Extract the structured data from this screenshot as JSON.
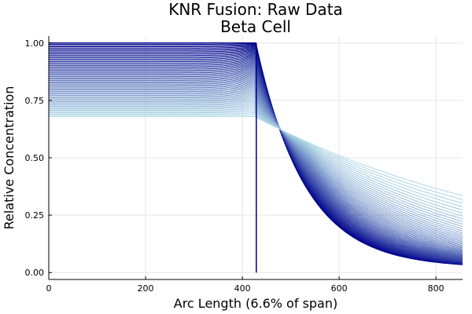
{
  "chart_data": {
    "type": "line",
    "title": "KNR Fusion: Raw Data",
    "subtitle": "Beta Cell",
    "xlabel": "Arc Length (6.6% of span)",
    "ylabel": "Relative Concentration",
    "xlim": [
      0,
      855
    ],
    "ylim": [
      -0.03,
      1.03
    ],
    "xticks": [
      0,
      200,
      400,
      600,
      800
    ],
    "yticks": [
      0.0,
      0.25,
      0.5,
      0.75,
      1.0
    ],
    "xtick_labels": [
      "0",
      "200",
      "400",
      "600",
      "800"
    ],
    "ytick_labels": [
      "0.00",
      "0.25",
      "0.50",
      "0.75",
      "1.00"
    ],
    "grid": true,
    "legend": "none",
    "boundary_x": 428,
    "series_count": 60,
    "plateau": {
      "x_start": 0,
      "x_end": 428,
      "level_min": 0.68,
      "level_max": 1.0
    },
    "decay": {
      "x_start": 428,
      "x_end": 855,
      "start_min": 0.68,
      "start_max": 1.0,
      "end_min": 0.0,
      "end_max": 0.02
    },
    "colors": {
      "dark": "#00008b",
      "light": "#add8e6"
    }
  }
}
